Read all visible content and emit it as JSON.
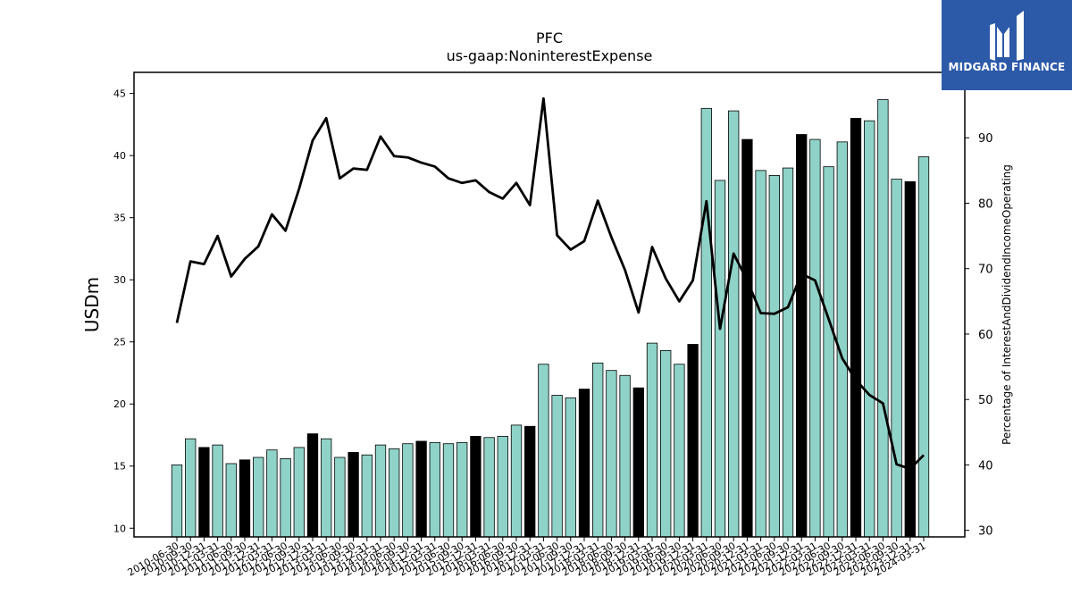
{
  "chart_data": {
    "type": "bar",
    "title": "PFC",
    "subtitle": "us-gaap:NoninterestExpense",
    "ylabel": "USDm",
    "y2label": "Percentage of InterestAndDividendIncomeOperating",
    "ylim": [
      9.3,
      46.7
    ],
    "y2lim": [
      29,
      100
    ],
    "yticks": [
      10,
      15,
      20,
      25,
      30,
      35,
      40,
      45
    ],
    "y2ticks": [
      30,
      40,
      50,
      60,
      70,
      80,
      90
    ],
    "grid": false,
    "categories": [
      "2010-06-30",
      "2010-09-30",
      "2010-12-31",
      "2011-03-31",
      "2011-06-30",
      "2011-09-30",
      "2011-12-31",
      "2012-03-31",
      "2012-06-30",
      "2012-09-30",
      "2012-12-31",
      "2013-03-31",
      "2013-06-30",
      "2013-09-30",
      "2013-12-31",
      "2014-03-31",
      "2014-06-30",
      "2014-09-30",
      "2014-12-31",
      "2015-03-31",
      "2015-06-30",
      "2015-09-30",
      "2015-12-31",
      "2016-03-31",
      "2016-06-30",
      "2016-09-30",
      "2016-12-31",
      "2017-03-31",
      "2017-06-30",
      "2017-09-30",
      "2017-12-31",
      "2018-03-31",
      "2018-06-30",
      "2018-09-30",
      "2018-12-31",
      "2019-03-31",
      "2019-06-30",
      "2019-09-30",
      "2019-12-31",
      "2020-03-31",
      "2020-06-30",
      "2020-09-30",
      "2020-12-31",
      "2021-03-31",
      "2021-06-30",
      "2021-09-30",
      "2021-12-31",
      "2022-03-31",
      "2022-06-30",
      "2022-09-30",
      "2022-12-31",
      "2023-03-31",
      "2023-06-30",
      "2023-09-30",
      "2023-12-31",
      "2024-03-31"
    ],
    "tick_labels": [
      "2010-06-30",
      "2010-09-30",
      "2010-12-31",
      "2011-03-31",
      "2011-06-30",
      "2011-09-30",
      "2011-12-31",
      "2012-03-31",
      "2012-06-30",
      "2012-09-30",
      "2012-12-31",
      "2013-03-31",
      "2013-06-30",
      "2013-09-30",
      "2013-12-31",
      "2014-03-31",
      "2014-06-30",
      "2014-09-30",
      "2014-12-31",
      "2015-03-31",
      "2015-06-30",
      "2015-09-30",
      "2015-12-31",
      "2016-03-31",
      "2016-06-30",
      "2016-09-30",
      "2016-12-31",
      "2017-03-31",
      "2017-06-30",
      "2017-09-30",
      "2017-12-31",
      "2018-03-31",
      "2018-06-30",
      "2018-09-30",
      "2018-12-31",
      "2019-03-31",
      "2019-06-30",
      "2019-09-30",
      "2019-12-31",
      "2020-03-31",
      "2020-06-30",
      "2020-09-30",
      "2020-12-31",
      "2021-03-31",
      "2021-06-30",
      "2021-09-30",
      "2021-12-31",
      "2022-03-31",
      "2022-06-30",
      "2022-09-30",
      "2022-12-31",
      "2023-03-31",
      "2023-06-30",
      "2023-09-30",
      "2023-12-31",
      "2024-03-31"
    ],
    "series": [
      {
        "type": "bar",
        "axis": "left",
        "values": [
          15.1,
          17.2,
          16.5,
          16.7,
          15.2,
          15.5,
          15.7,
          16.3,
          15.6,
          16.5,
          17.6,
          17.2,
          15.7,
          16.1,
          15.9,
          16.7,
          16.4,
          16.8,
          17.0,
          16.9,
          16.8,
          16.9,
          17.4,
          17.3,
          17.4,
          18.3,
          18.2,
          23.2,
          20.7,
          20.5,
          21.2,
          23.3,
          22.7,
          22.3,
          21.3,
          24.9,
          24.3,
          23.2,
          24.8,
          43.8,
          38.0,
          43.6,
          41.3,
          38.8,
          38.4,
          39.0,
          41.7,
          41.3,
          39.1,
          41.1,
          43.0,
          42.8,
          44.5,
          38.1,
          37.9,
          39.9
        ],
        "highlight": [
          false,
          false,
          true,
          false,
          false,
          true,
          false,
          false,
          false,
          false,
          true,
          false,
          false,
          true,
          false,
          false,
          false,
          false,
          true,
          false,
          false,
          false,
          true,
          false,
          false,
          false,
          true,
          false,
          false,
          false,
          true,
          false,
          false,
          false,
          true,
          false,
          false,
          false,
          true,
          false,
          false,
          false,
          true,
          false,
          false,
          false,
          true,
          false,
          false,
          false,
          true,
          false,
          false,
          false,
          true,
          false
        ]
      },
      {
        "type": "line",
        "axis": "right",
        "values": [
          61.7,
          71.1,
          70.7,
          75.0,
          68.8,
          71.5,
          73.4,
          78.3,
          75.8,
          82.2,
          89.6,
          93.0,
          83.8,
          85.3,
          85.1,
          90.2,
          87.2,
          87.0,
          86.2,
          85.6,
          83.8,
          83.1,
          83.5,
          81.7,
          80.7,
          83.1,
          79.7,
          96.0,
          75.1,
          72.9,
          74.2,
          80.4,
          74.8,
          69.8,
          63.3,
          73.3,
          68.5,
          65.0,
          68.2,
          80.3,
          60.8,
          72.3,
          68.2,
          63.2,
          63.1,
          64.1,
          69.2,
          68.2,
          62.3,
          56.3,
          53.0,
          50.7,
          49.4,
          40.1,
          39.4,
          41.5
        ]
      }
    ],
    "colors": {
      "bar": "#8fd3c8",
      "bar_highlight": "#000000",
      "line": "#000000",
      "logo_bg": "#2c5aa8"
    }
  },
  "logo": {
    "text": "MIDGARD FINANCE"
  }
}
